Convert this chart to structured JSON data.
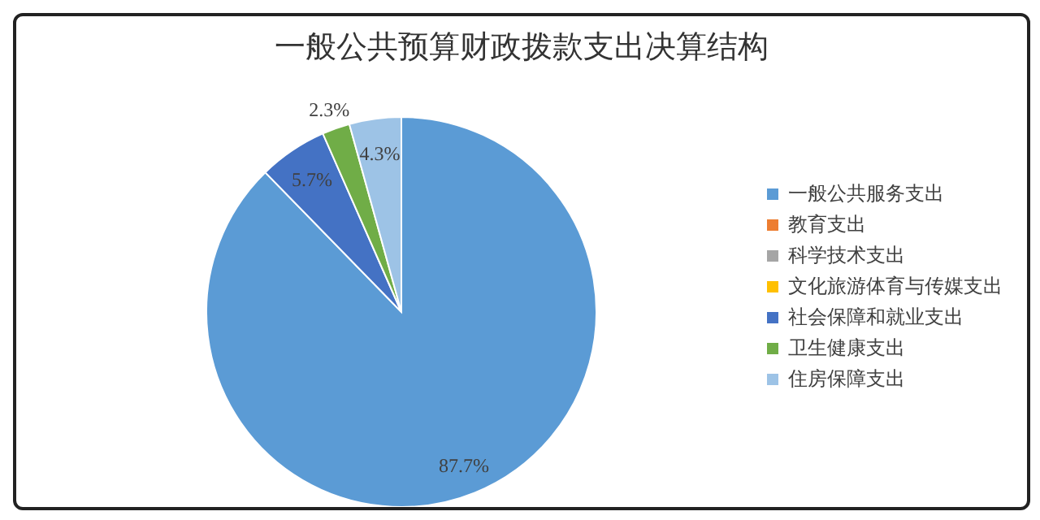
{
  "chart_data": {
    "type": "pie",
    "title": "一般公共预算财政拨款支出决算结构",
    "categories": [
      "一般公共服务支出",
      "教育支出",
      "科学技术支出",
      "文化旅游体育与传媒支出",
      "社会保障和就业支出",
      "卫生健康支出",
      "住房保障支出"
    ],
    "values": [
      87.7,
      0,
      0,
      0,
      5.7,
      2.3,
      4.3
    ],
    "colors": [
      "#5b9bd5",
      "#ed7d31",
      "#a5a5a5",
      "#ffc000",
      "#4472c4",
      "#70ad47",
      "#9dc3e6"
    ],
    "value_labels": [
      "87.7%",
      null,
      null,
      null,
      "5.7%",
      "2.3%",
      "4.3%"
    ],
    "legend": "right"
  }
}
